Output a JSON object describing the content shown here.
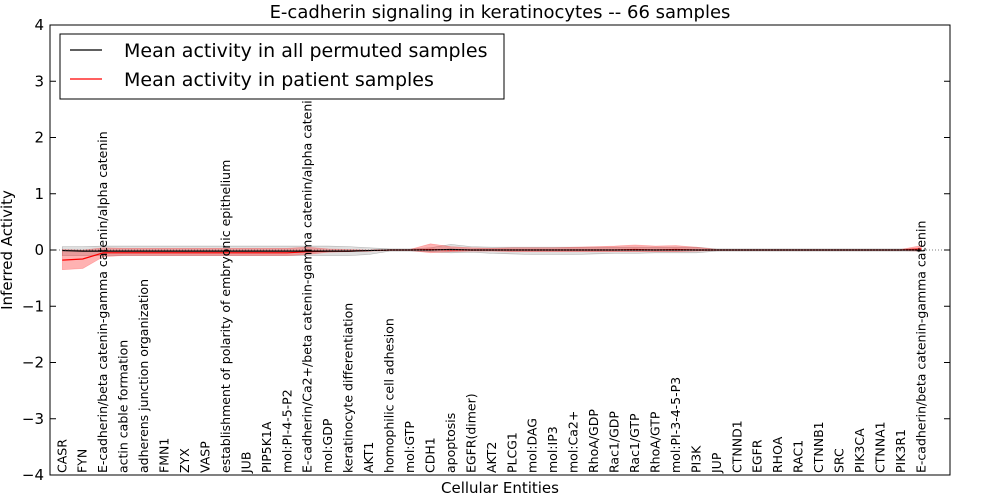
{
  "chart_data": {
    "type": "line",
    "title": "E-cadherin signaling in keratinocytes -- 66 samples",
    "xlabel": "Cellular Entities",
    "ylabel": "Inferred Activity",
    "ylim": [
      -4,
      4
    ],
    "yticks": [
      -4,
      -3,
      -2,
      -1,
      0,
      1,
      2,
      3,
      4
    ],
    "ytick_labels": [
      "−4",
      "−3",
      "−2",
      "−1",
      "0",
      "1",
      "2",
      "3",
      "4"
    ],
    "grid": false,
    "legend_position": "top-left",
    "categories": [
      "CASR",
      "FYN",
      "E-cadherin/beta catenin-gamma catenin/alpha catenin",
      "actin cable formation",
      "adherens junction organization",
      "FMN1",
      "ZYX",
      "VASP",
      "establishment of polarity of embryonic epithelium",
      "JUB",
      "PIP5K1A",
      "mol:PI-4-5-P2",
      "E-cadherin/Ca2+/beta catenin-gamma catenin/alpha catenin",
      "mol:GDP",
      "keratinocyte differentiation",
      "AKT1",
      "homophilic cell adhesion",
      "mol:GTP",
      "CDH1",
      "apoptosis",
      "EGFR(dimer)",
      "AKT2",
      "PLCG1",
      "mol:DAG",
      "mol:IP3",
      "mol:Ca2+",
      "RhoA/GDP",
      "Rac1/GDP",
      "Rac1/GTP",
      "RhoA/GTP",
      "mol:PI-3-4-5-P3",
      "PI3K",
      "JUP",
      "CTNND1",
      "EGFR",
      "RHOA",
      "RAC1",
      "CTNNB1",
      "SRC",
      "PIK3CA",
      "CTNNA1",
      "PIK3R1",
      "E-cadherin/beta catenin-gamma catenin"
    ],
    "series": [
      {
        "name": "Mean activity in all permuted samples",
        "color": "#000000",
        "values": [
          -0.01,
          -0.02,
          -0.02,
          -0.02,
          -0.02,
          -0.02,
          -0.02,
          -0.02,
          -0.02,
          -0.02,
          -0.02,
          -0.02,
          -0.02,
          -0.02,
          -0.02,
          -0.01,
          0.0,
          0.0,
          0.0,
          0.01,
          0.0,
          0.0,
          0.0,
          0.0,
          0.0,
          0.0,
          0.0,
          0.0,
          0.0,
          0.0,
          0.0,
          0.0,
          0.0,
          0.0,
          0.0,
          0.0,
          0.0,
          0.0,
          0.0,
          0.0,
          0.0,
          0.0,
          0.0
        ],
        "band_lower": [
          -0.1,
          -0.1,
          -0.1,
          -0.1,
          -0.1,
          -0.1,
          -0.1,
          -0.1,
          -0.1,
          -0.1,
          -0.1,
          -0.1,
          -0.1,
          -0.1,
          -0.1,
          -0.08,
          -0.02,
          -0.02,
          -0.03,
          -0.05,
          -0.04,
          -0.06,
          -0.07,
          -0.08,
          -0.08,
          -0.08,
          -0.07,
          -0.06,
          -0.06,
          -0.05,
          -0.05,
          -0.05,
          -0.02,
          -0.02,
          -0.02,
          -0.02,
          -0.02,
          -0.02,
          -0.02,
          -0.02,
          -0.02,
          -0.02,
          -0.02
        ],
        "band_upper": [
          0.06,
          0.06,
          0.07,
          0.07,
          0.07,
          0.07,
          0.07,
          0.07,
          0.07,
          0.07,
          0.07,
          0.07,
          0.07,
          0.07,
          0.06,
          0.04,
          0.02,
          0.02,
          0.04,
          0.1,
          0.06,
          0.05,
          0.05,
          0.05,
          0.05,
          0.05,
          0.05,
          0.05,
          0.05,
          0.05,
          0.05,
          0.05,
          0.02,
          0.02,
          0.02,
          0.02,
          0.02,
          0.02,
          0.02,
          0.02,
          0.02,
          0.02,
          0.02
        ]
      },
      {
        "name": "Mean activity in patient samples",
        "color": "#ff0000",
        "values": [
          -0.18,
          -0.16,
          -0.05,
          -0.05,
          -0.05,
          -0.05,
          -0.05,
          -0.05,
          -0.05,
          -0.05,
          -0.05,
          -0.05,
          -0.03,
          -0.02,
          -0.02,
          -0.01,
          0.0,
          0.0,
          0.01,
          0.0,
          0.0,
          0.0,
          0.0,
          0.0,
          0.0,
          0.0,
          0.0,
          0.0,
          0.01,
          0.0,
          0.01,
          0.0,
          0.0,
          0.0,
          0.0,
          0.0,
          0.0,
          0.0,
          0.0,
          0.0,
          0.0,
          0.0,
          0.02
        ],
        "band_lower": [
          -0.35,
          -0.33,
          -0.12,
          -0.1,
          -0.1,
          -0.1,
          -0.1,
          -0.1,
          -0.1,
          -0.1,
          -0.1,
          -0.1,
          -0.08,
          -0.04,
          -0.03,
          -0.02,
          -0.01,
          -0.01,
          -0.05,
          -0.03,
          -0.02,
          -0.02,
          -0.03,
          -0.03,
          -0.03,
          -0.03,
          -0.03,
          -0.03,
          -0.03,
          -0.03,
          -0.03,
          -0.02,
          -0.01,
          -0.01,
          -0.01,
          -0.01,
          -0.01,
          -0.01,
          -0.01,
          -0.01,
          -0.01,
          -0.01,
          -0.02
        ],
        "band_upper": [
          0.01,
          0.0,
          0.04,
          0.03,
          0.03,
          0.03,
          0.03,
          0.03,
          0.03,
          0.03,
          0.03,
          0.03,
          0.05,
          0.02,
          0.01,
          0.0,
          0.01,
          0.01,
          0.11,
          0.06,
          0.04,
          0.03,
          0.04,
          0.04,
          0.04,
          0.05,
          0.06,
          0.07,
          0.09,
          0.07,
          0.08,
          0.05,
          0.01,
          0.01,
          0.01,
          0.01,
          0.01,
          0.01,
          0.01,
          0.01,
          0.01,
          0.01,
          0.08
        ]
      }
    ]
  }
}
